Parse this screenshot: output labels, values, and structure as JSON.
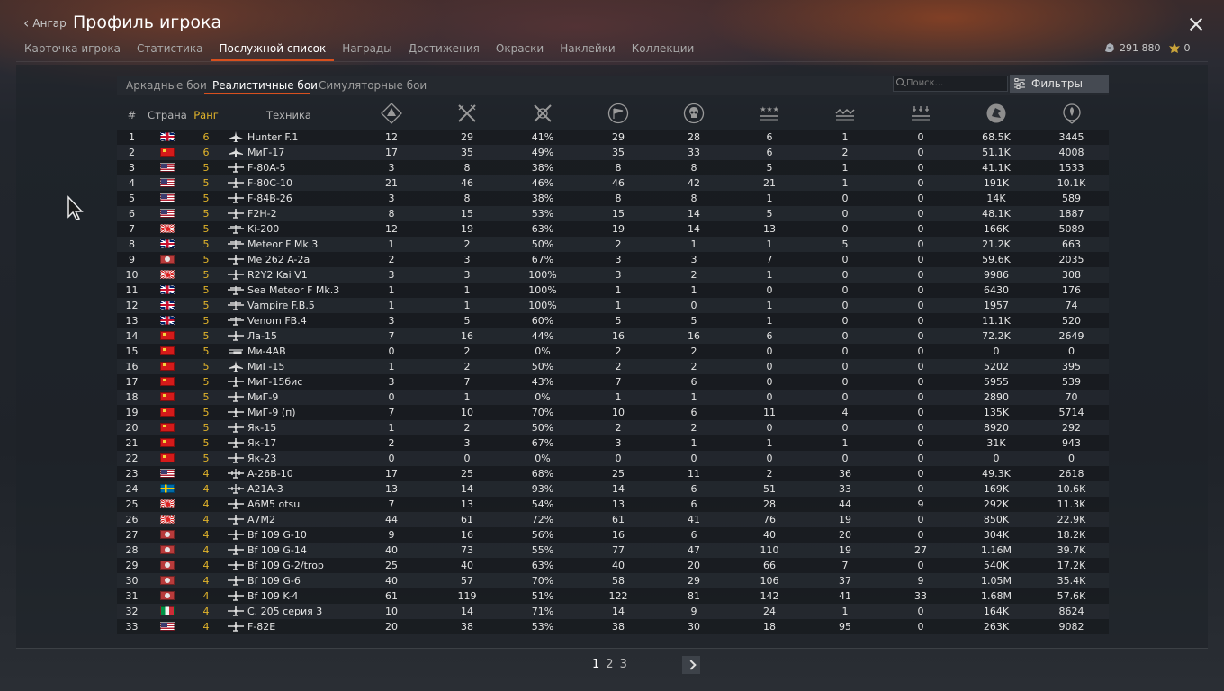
{
  "header": {
    "back_label": "Ангар",
    "title": "Профиль игрока",
    "tabs": [
      "Карточка игрока",
      "Статистика",
      "Послужной список",
      "Награды",
      "Достижения",
      "Окраски",
      "Наклейки",
      "Коллекции"
    ],
    "active_tab": "Послужной список",
    "silver_lions": "291 880",
    "golden_eagles": "0"
  },
  "modes": {
    "tabs": [
      "Аркадные бои",
      "Реалистичные бои",
      "Симуляторные бои"
    ],
    "active": "Реалистичные бои"
  },
  "search": {
    "placeholder": "Поиск..."
  },
  "filters_label": "Фильтры",
  "table": {
    "col_num": "#",
    "col_country": "Страна",
    "col_rank": "Ранг",
    "col_vehicle": "Техника",
    "stat_icons": [
      "battles-icon",
      "victories-icon",
      "win-rate-icon",
      "respawns-icon",
      "deaths-icon",
      "air-kills-icon",
      "ground-kills-icon",
      "naval-kills-icon",
      "research-points-icon",
      "silver-lions-icon"
    ],
    "rows": [
      {
        "n": "1",
        "country": "uk",
        "rank": "6",
        "type": "jet",
        "name": "Hunter F.1",
        "s": [
          "12",
          "29",
          "41%",
          "29",
          "28",
          "6",
          "1",
          "0",
          "68.5K",
          "3445"
        ]
      },
      {
        "n": "2",
        "country": "ussr",
        "rank": "6",
        "type": "jet",
        "name": "МиГ-17",
        "s": [
          "17",
          "35",
          "49%",
          "35",
          "33",
          "6",
          "2",
          "0",
          "51.1K",
          "4008"
        ]
      },
      {
        "n": "3",
        "country": "us",
        "rank": "5",
        "type": "fighter",
        "name": "F-80A-5",
        "s": [
          "3",
          "8",
          "38%",
          "8",
          "8",
          "5",
          "1",
          "0",
          "41.1K",
          "1533"
        ]
      },
      {
        "n": "4",
        "country": "us",
        "rank": "5",
        "type": "fighter",
        "name": "F-80C-10",
        "s": [
          "21",
          "46",
          "46%",
          "46",
          "42",
          "21",
          "1",
          "0",
          "191K",
          "10.1K"
        ]
      },
      {
        "n": "5",
        "country": "us",
        "rank": "5",
        "type": "fighter",
        "name": "F-84B-26",
        "s": [
          "3",
          "8",
          "38%",
          "8",
          "8",
          "1",
          "0",
          "0",
          "14K",
          "589"
        ]
      },
      {
        "n": "6",
        "country": "us",
        "rank": "5",
        "type": "fighter",
        "name": "F2H-2",
        "s": [
          "8",
          "15",
          "53%",
          "15",
          "14",
          "5",
          "0",
          "0",
          "48.1K",
          "1887"
        ]
      },
      {
        "n": "7",
        "country": "jp",
        "rank": "5",
        "type": "attacker",
        "name": "Ki-200",
        "s": [
          "12",
          "19",
          "63%",
          "19",
          "14",
          "13",
          "0",
          "0",
          "166K",
          "5089"
        ]
      },
      {
        "n": "8",
        "country": "uk",
        "rank": "5",
        "type": "attacker",
        "name": "Meteor F Mk.3",
        "s": [
          "1",
          "2",
          "50%",
          "2",
          "1",
          "1",
          "5",
          "0",
          "21.2K",
          "663"
        ]
      },
      {
        "n": "9",
        "country": "de",
        "rank": "5",
        "type": "fighter",
        "name": "Me 262 A-2a",
        "s": [
          "2",
          "3",
          "67%",
          "3",
          "3",
          "7",
          "0",
          "0",
          "59.6K",
          "2035"
        ]
      },
      {
        "n": "10",
        "country": "jp",
        "rank": "5",
        "type": "fighter",
        "name": "R2Y2 Kai V1",
        "s": [
          "3",
          "3",
          "100%",
          "3",
          "2",
          "1",
          "0",
          "0",
          "9986",
          "308"
        ]
      },
      {
        "n": "11",
        "country": "uk",
        "rank": "5",
        "type": "attacker",
        "name": "Sea Meteor F Mk.3",
        "s": [
          "1",
          "1",
          "100%",
          "1",
          "1",
          "0",
          "0",
          "0",
          "6430",
          "176"
        ]
      },
      {
        "n": "12",
        "country": "uk",
        "rank": "5",
        "type": "attacker",
        "name": "Vampire F.B.5",
        "s": [
          "1",
          "1",
          "100%",
          "1",
          "0",
          "1",
          "0",
          "0",
          "1957",
          "74"
        ]
      },
      {
        "n": "13",
        "country": "uk",
        "rank": "5",
        "type": "attacker",
        "name": "Venom FB.4",
        "s": [
          "3",
          "5",
          "60%",
          "5",
          "5",
          "1",
          "0",
          "0",
          "11.1K",
          "520"
        ]
      },
      {
        "n": "14",
        "country": "ussr",
        "rank": "5",
        "type": "fighter",
        "name": "Ла-15",
        "s": [
          "7",
          "16",
          "44%",
          "16",
          "16",
          "6",
          "0",
          "0",
          "72.2K",
          "2649"
        ]
      },
      {
        "n": "15",
        "country": "ussr",
        "rank": "5",
        "type": "heli",
        "name": "Ми-4АВ",
        "s": [
          "0",
          "2",
          "0%",
          "2",
          "2",
          "0",
          "0",
          "0",
          "0",
          "0"
        ]
      },
      {
        "n": "16",
        "country": "ussr",
        "rank": "5",
        "type": "jet",
        "name": "МиГ-15",
        "s": [
          "1",
          "2",
          "50%",
          "2",
          "2",
          "0",
          "0",
          "0",
          "5202",
          "395"
        ]
      },
      {
        "n": "17",
        "country": "ussr",
        "rank": "5",
        "type": "fighter",
        "name": "МиГ-15бис",
        "s": [
          "3",
          "7",
          "43%",
          "7",
          "6",
          "0",
          "0",
          "0",
          "5955",
          "539"
        ]
      },
      {
        "n": "18",
        "country": "ussr",
        "rank": "5",
        "type": "fighter",
        "name": "МиГ-9",
        "s": [
          "0",
          "1",
          "0%",
          "1",
          "1",
          "0",
          "0",
          "0",
          "2890",
          "70"
        ]
      },
      {
        "n": "19",
        "country": "ussr",
        "rank": "5",
        "type": "fighter",
        "name": "МиГ-9 (п)",
        "s": [
          "7",
          "10",
          "70%",
          "10",
          "6",
          "11",
          "4",
          "0",
          "135K",
          "5714"
        ]
      },
      {
        "n": "20",
        "country": "ussr",
        "rank": "5",
        "type": "fighter",
        "name": "Як-15",
        "s": [
          "1",
          "2",
          "50%",
          "2",
          "2",
          "0",
          "0",
          "0",
          "8920",
          "292"
        ]
      },
      {
        "n": "21",
        "country": "ussr",
        "rank": "5",
        "type": "fighter",
        "name": "Як-17",
        "s": [
          "2",
          "3",
          "67%",
          "3",
          "1",
          "1",
          "1",
          "0",
          "31K",
          "943"
        ]
      },
      {
        "n": "22",
        "country": "ussr",
        "rank": "5",
        "type": "fighter",
        "name": "Як-23",
        "s": [
          "0",
          "0",
          "0%",
          "0",
          "0",
          "0",
          "0",
          "0",
          "0",
          "0"
        ]
      },
      {
        "n": "23",
        "country": "us",
        "rank": "4",
        "type": "bomber",
        "name": "A-26B-10",
        "s": [
          "17",
          "25",
          "68%",
          "25",
          "11",
          "2",
          "36",
          "0",
          "49.3K",
          "2618"
        ]
      },
      {
        "n": "24",
        "country": "se",
        "rank": "4",
        "type": "bomber",
        "name": "A21A-3",
        "s": [
          "13",
          "14",
          "93%",
          "14",
          "6",
          "51",
          "33",
          "0",
          "169K",
          "10.6K"
        ]
      },
      {
        "n": "25",
        "country": "jp",
        "rank": "4",
        "type": "fighter",
        "name": "A6M5 otsu",
        "s": [
          "7",
          "13",
          "54%",
          "13",
          "6",
          "28",
          "44",
          "9",
          "292K",
          "11.3K"
        ]
      },
      {
        "n": "26",
        "country": "jp",
        "rank": "4",
        "type": "fighter",
        "name": "A7M2",
        "s": [
          "44",
          "61",
          "72%",
          "61",
          "41",
          "76",
          "19",
          "0",
          "850K",
          "22.9K"
        ]
      },
      {
        "n": "27",
        "country": "de",
        "rank": "4",
        "type": "fighter",
        "name": "Bf 109 G-10",
        "s": [
          "9",
          "16",
          "56%",
          "16",
          "6",
          "40",
          "20",
          "0",
          "304K",
          "18.2K"
        ]
      },
      {
        "n": "28",
        "country": "de",
        "rank": "4",
        "type": "fighter",
        "name": "Bf 109 G-14",
        "s": [
          "40",
          "73",
          "55%",
          "77",
          "47",
          "110",
          "19",
          "27",
          "1.16M",
          "39.7K"
        ]
      },
      {
        "n": "29",
        "country": "de",
        "rank": "4",
        "type": "fighter",
        "name": "Bf 109 G-2/trop",
        "s": [
          "25",
          "40",
          "63%",
          "40",
          "20",
          "66",
          "7",
          "0",
          "540K",
          "17.2K"
        ]
      },
      {
        "n": "30",
        "country": "de",
        "rank": "4",
        "type": "fighter",
        "name": "Bf 109 G-6",
        "s": [
          "40",
          "57",
          "70%",
          "58",
          "29",
          "106",
          "37",
          "9",
          "1.05M",
          "35.4K"
        ]
      },
      {
        "n": "31",
        "country": "de",
        "rank": "4",
        "type": "fighter",
        "name": "Bf 109 K-4",
        "s": [
          "61",
          "119",
          "51%",
          "122",
          "81",
          "142",
          "41",
          "33",
          "1.68M",
          "57.6K"
        ]
      },
      {
        "n": "32",
        "country": "it",
        "rank": "4",
        "type": "fighter",
        "name": "C. 205 серия 3",
        "s": [
          "10",
          "14",
          "71%",
          "14",
          "9",
          "24",
          "1",
          "0",
          "164K",
          "8624"
        ]
      },
      {
        "n": "33",
        "country": "us",
        "rank": "4",
        "type": "fighter",
        "name": "F-82E",
        "s": [
          "20",
          "38",
          "53%",
          "38",
          "30",
          "18",
          "95",
          "0",
          "263K",
          "9082"
        ]
      }
    ]
  },
  "pager": {
    "pages": [
      "1",
      "2",
      "3"
    ],
    "current": "1"
  },
  "colors": {
    "accent": "#d8501e",
    "rank": "#e3b52a"
  }
}
